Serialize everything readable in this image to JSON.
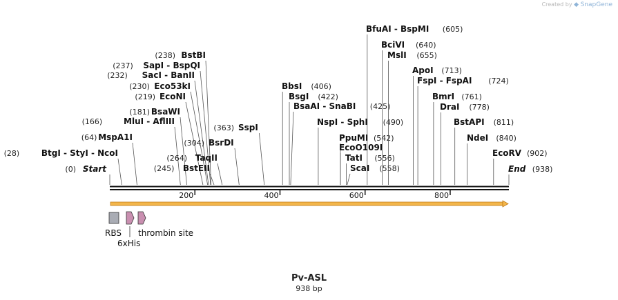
{
  "watermark": {
    "prefix": "Created by",
    "brand": "SnapGene"
  },
  "plasmid": {
    "name": "Pv-ASL",
    "length_label": "938 bp",
    "length": 938
  },
  "sites": [
    {
      "name": "Start",
      "pos": 0,
      "pos_label": "(0)",
      "italic": true
    },
    {
      "name": "BtgI - StyI - NcoI",
      "pos": 28,
      "pos_label": "(28)"
    },
    {
      "name": "MspA1I",
      "pos": 64,
      "pos_label": "(64)"
    },
    {
      "name": "MluI - AflIII",
      "pos": 166,
      "pos_label": "(166)"
    },
    {
      "name": "BsaWI",
      "pos": 181,
      "pos_label": "(181)"
    },
    {
      "name": "EcoNI",
      "pos": 219,
      "pos_label": "(219)"
    },
    {
      "name": "Eco53kI",
      "pos": 230,
      "pos_label": "(230)"
    },
    {
      "name": "SacI - BanII",
      "pos": 232,
      "pos_label": "(232)"
    },
    {
      "name": "SapI - BspQI",
      "pos": 237,
      "pos_label": "(237)"
    },
    {
      "name": "BstBI",
      "pos": 238,
      "pos_label": "(238)"
    },
    {
      "name": "BstEII",
      "pos": 245,
      "pos_label": "(245)"
    },
    {
      "name": "TaqII",
      "pos": 264,
      "pos_label": "(264)"
    },
    {
      "name": "BsrDI",
      "pos": 304,
      "pos_label": "(304)"
    },
    {
      "name": "SspI",
      "pos": 363,
      "pos_label": "(363)"
    },
    {
      "name": "BbsI",
      "pos": 406,
      "pos_label": "(406)"
    },
    {
      "name": "BsgI",
      "pos": 422,
      "pos_label": "(422)"
    },
    {
      "name": "BsaAI - SnaBI",
      "pos": 425,
      "pos_label": "(425)"
    },
    {
      "name": "NspI - SphI",
      "pos": 490,
      "pos_label": "(490)"
    },
    {
      "name": "PpuMI",
      "pos": 542,
      "pos_label": "(542)"
    },
    {
      "name": "EcoO109I",
      "pos": 542,
      "pos_label": ""
    },
    {
      "name": "TatI",
      "pos": 556,
      "pos_label": "(556)"
    },
    {
      "name": "ScaI",
      "pos": 558,
      "pos_label": "(558)"
    },
    {
      "name": "BfuAI - BspMI",
      "pos": 605,
      "pos_label": "(605)"
    },
    {
      "name": "BciVI",
      "pos": 640,
      "pos_label": "(640)"
    },
    {
      "name": "MslI",
      "pos": 655,
      "pos_label": "(655)"
    },
    {
      "name": "ApoI",
      "pos": 713,
      "pos_label": "(713)"
    },
    {
      "name": "FspI - FspAI",
      "pos": 724,
      "pos_label": "(724)"
    },
    {
      "name": "BmrI",
      "pos": 761,
      "pos_label": "(761)"
    },
    {
      "name": "DraI",
      "pos": 778,
      "pos_label": "(778)"
    },
    {
      "name": "BstAPI",
      "pos": 811,
      "pos_label": "(811)"
    },
    {
      "name": "NdeI",
      "pos": 840,
      "pos_label": "(840)"
    },
    {
      "name": "EcoRV",
      "pos": 902,
      "pos_label": "(902)"
    },
    {
      "name": "End",
      "pos": 938,
      "pos_label": "(938)",
      "italic": true
    }
  ],
  "ticks": [
    {
      "pos": 200,
      "label": "200"
    },
    {
      "pos": 400,
      "label": "400"
    },
    {
      "pos": 600,
      "label": "600"
    },
    {
      "pos": 800,
      "label": "800"
    }
  ],
  "features": [
    {
      "name": "RBS",
      "type": "box"
    },
    {
      "name": "6xHis",
      "type": "arrow"
    },
    {
      "name": "thrombin site",
      "type": "arrow"
    }
  ],
  "colors": {
    "orf_fill": "#f3b64b",
    "orf_stroke": "#c07a18",
    "his_fill": "#c98fb0",
    "rbs_fill": "#a9acb4",
    "line": "#555555",
    "text": "#111111",
    "pos_text": "#222222"
  }
}
